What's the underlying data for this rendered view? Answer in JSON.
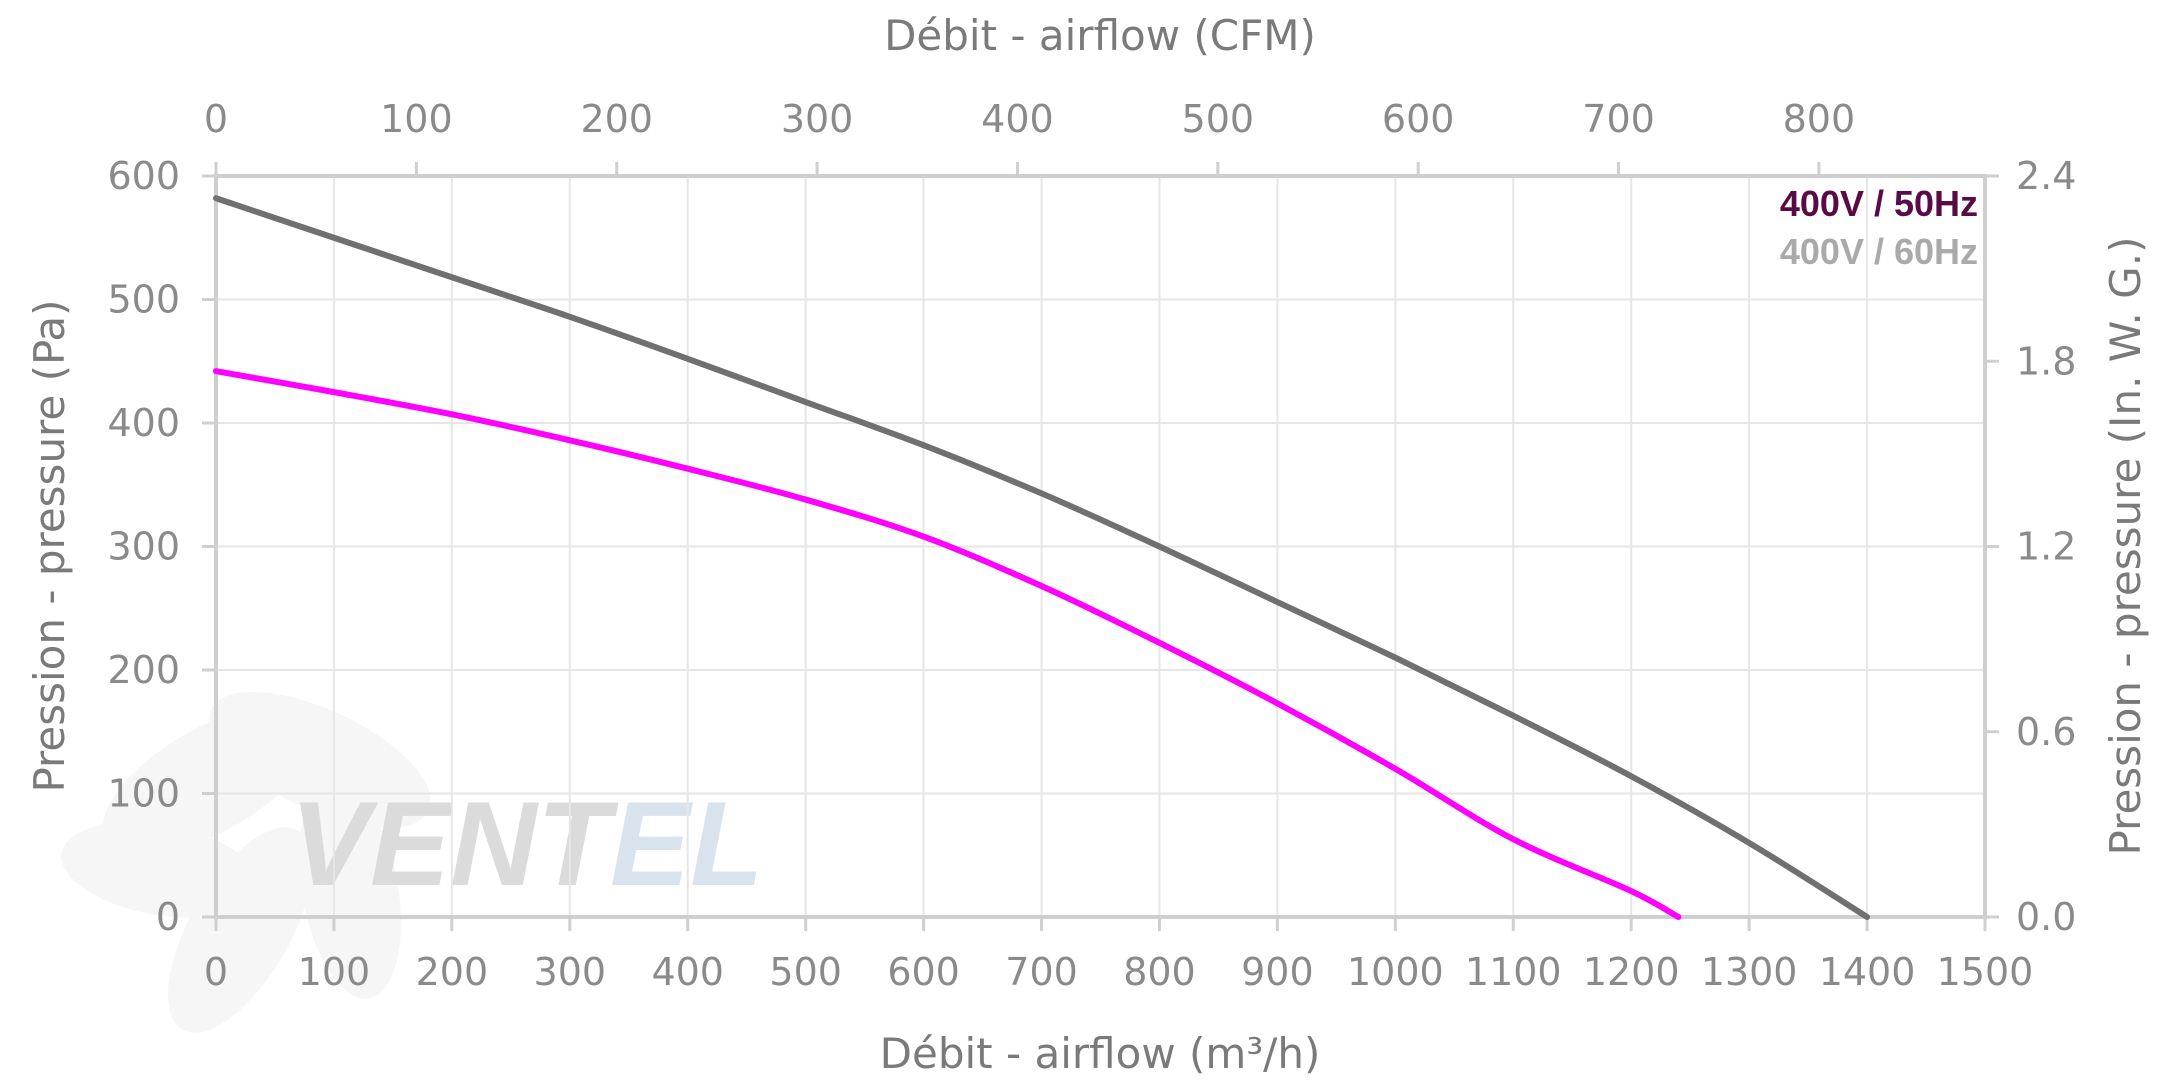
{
  "chart_data": {
    "type": "line",
    "title": "",
    "x_bottom": {
      "label": "Débit - airflow (m³/h)",
      "range": [
        0,
        1500
      ],
      "ticks": [
        "0",
        "100",
        "200",
        "300",
        "400",
        "500",
        "600",
        "700",
        "800",
        "900",
        "1000",
        "1100",
        "1200",
        "1300",
        "1400",
        "1500"
      ]
    },
    "x_top": {
      "label": "Débit - airflow (CFM)",
      "range": [
        0,
        882.9
      ],
      "ticks": [
        "0",
        "100",
        "200",
        "300",
        "400",
        "500",
        "600",
        "700",
        "800"
      ]
    },
    "y_left": {
      "label": "Pression - pressure (Pa)",
      "range": [
        0,
        600
      ],
      "ticks": [
        "0",
        "100",
        "200",
        "300",
        "400",
        "500",
        "600"
      ]
    },
    "y_right": {
      "label": "Pression - pressure (In. W. G.)",
      "range": [
        0,
        2.4
      ],
      "ticks": [
        "0.0",
        "0.6",
        "1.2",
        "1.8",
        "2.4"
      ]
    },
    "grid": true,
    "legend_position": "top-right",
    "series": [
      {
        "name": "400V / 50Hz",
        "color": "#ff00ff",
        "legend_color": "#5a0a45",
        "x": [
          0,
          100,
          200,
          300,
          400,
          500,
          600,
          700,
          800,
          900,
          1000,
          1100,
          1200,
          1240
        ],
        "y": [
          442,
          425,
          407,
          386,
          363,
          338,
          308,
          268,
          222,
          173,
          120,
          63,
          21,
          0
        ]
      },
      {
        "name": "400V / 60Hz",
        "color": "#707070",
        "legend_color": "#aaaaaa",
        "x": [
          0,
          100,
          200,
          300,
          400,
          500,
          600,
          700,
          800,
          900,
          1000,
          1100,
          1200,
          1300,
          1400
        ],
        "y": [
          582,
          550,
          518,
          486,
          452,
          417,
          382,
          343,
          300,
          255,
          210,
          163,
          114,
          60,
          0
        ]
      }
    ]
  },
  "watermark": {
    "text_dark": "VENT",
    "text_light": "EL"
  }
}
